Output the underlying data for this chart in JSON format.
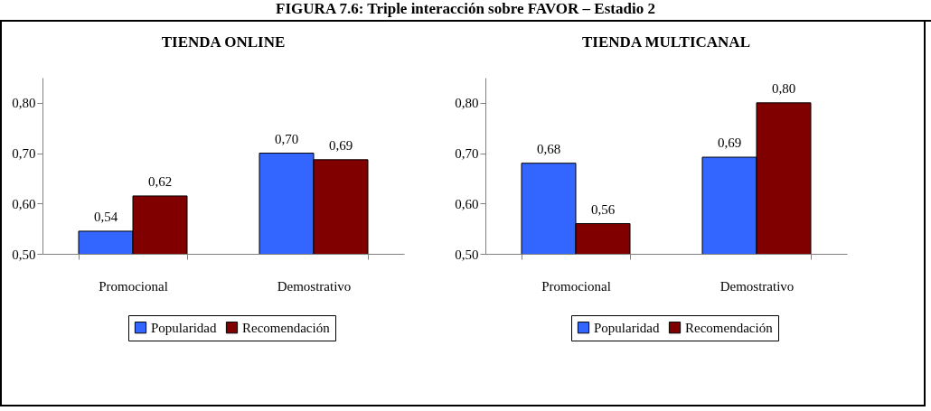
{
  "chart_data": [
    {
      "type": "bar",
      "title": "TIENDA ONLINE",
      "annotations": [
        "FIGURA 7.6: Triple interacción sobre FAVOR – Estadio 2"
      ],
      "categories": [
        "Promocional",
        "Demostrativo"
      ],
      "series": [
        {
          "name": "Popularidad",
          "color": "#3366ff",
          "values": [
            0.545,
            0.7
          ],
          "value_labels": [
            "0,54",
            "0,70"
          ]
        },
        {
          "name": "Recomendación",
          "color": "#800000",
          "values": [
            0.615,
            0.687
          ],
          "value_labels": [
            "0,62",
            "0,69"
          ]
        }
      ],
      "ylim": [
        0.5,
        0.85
      ],
      "yticks": [
        {
          "value": 0.5,
          "label": "0,50"
        },
        {
          "value": 0.6,
          "label": "0,60"
        },
        {
          "value": 0.7,
          "label": "0,70"
        },
        {
          "value": 0.8,
          "label": "0,80"
        }
      ],
      "grid": false,
      "legend": "bottom"
    },
    {
      "type": "bar",
      "title": "TIENDA MULTICANAL",
      "categories": [
        "Promocional",
        "Demostrativo"
      ],
      "series": [
        {
          "name": "Popularidad",
          "color": "#3366ff",
          "values": [
            0.68,
            0.692
          ],
          "value_labels": [
            "0,68",
            "0,69"
          ]
        },
        {
          "name": "Recomendación",
          "color": "#800000",
          "values": [
            0.56,
            0.8
          ],
          "value_labels": [
            "0,56",
            "0,80"
          ]
        }
      ],
      "ylim": [
        0.5,
        0.85
      ],
      "yticks": [
        {
          "value": 0.5,
          "label": "0,50"
        },
        {
          "value": 0.6,
          "label": "0,60"
        },
        {
          "value": 0.7,
          "label": "0,70"
        },
        {
          "value": 0.8,
          "label": "0,80"
        }
      ],
      "grid": false,
      "legend": "bottom"
    }
  ]
}
